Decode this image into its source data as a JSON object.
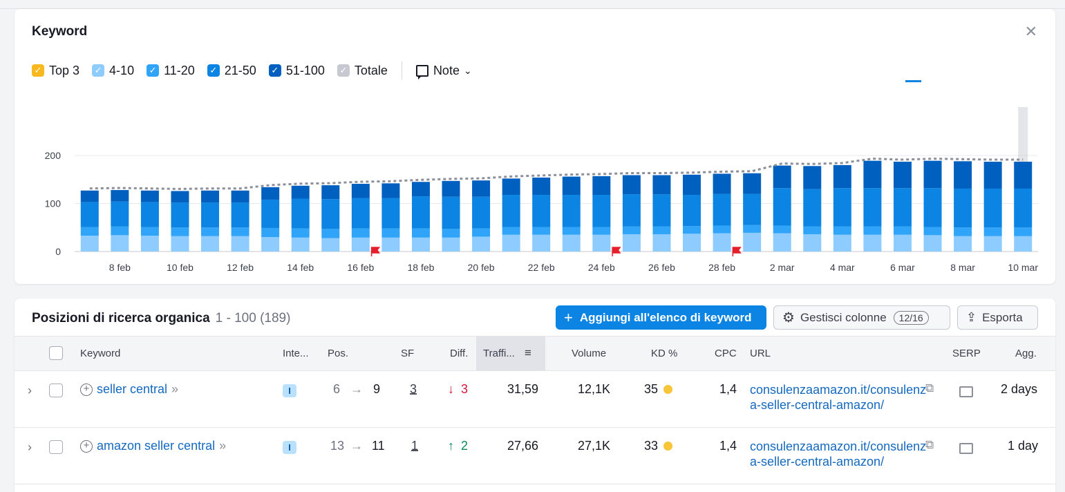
{
  "keyword_panel": {
    "title": "Keyword",
    "legend": [
      {
        "label": "Top 3",
        "color": "#f9b81f"
      },
      {
        "label": "4-10",
        "color": "#8ecbff"
      },
      {
        "label": "11-20",
        "color": "#2fa4f8"
      },
      {
        "label": "21-50",
        "color": "#0b84e3"
      },
      {
        "label": "51-100",
        "color": "#0060c0"
      },
      {
        "label": "Totale",
        "color": "#c6c9d0"
      }
    ],
    "note_label": "Note"
  },
  "chart_data": {
    "type": "bar",
    "stacked": true,
    "categories": [
      "7 feb",
      "8 feb",
      "9 feb",
      "10 feb",
      "11 feb",
      "12 feb",
      "13 feb",
      "14 feb",
      "15 feb",
      "16 feb",
      "17 feb",
      "18 feb",
      "19 feb",
      "20 feb",
      "21 feb",
      "22 feb",
      "23 feb",
      "24 feb",
      "25 feb",
      "26 feb",
      "27 feb",
      "28 feb",
      "1 mar",
      "2 mar",
      "3 mar",
      "4 mar",
      "5 mar",
      "6 mar",
      "7 mar",
      "8 mar",
      "9 mar",
      "10 mar"
    ],
    "x_tick_labels": [
      "8 feb",
      "10 feb",
      "12 feb",
      "14 feb",
      "16 feb",
      "18 feb",
      "20 feb",
      "22 feb",
      "24 feb",
      "26 feb",
      "28 feb",
      "2 mar",
      "4 mar",
      "6 mar",
      "8 mar",
      "10 mar"
    ],
    "y_ticks": [
      0,
      100,
      200
    ],
    "ylim": [
      0,
      280
    ],
    "series": [
      {
        "name": "4-10",
        "color": "#8ecbff",
        "values": [
          33,
          34,
          33,
          32,
          32,
          32,
          30,
          29,
          28,
          29,
          29,
          29,
          29,
          31,
          35,
          35,
          35,
          35,
          36,
          36,
          37,
          38,
          39,
          38,
          36,
          35,
          35,
          35,
          34,
          32,
          32,
          32
        ]
      },
      {
        "name": "11-20",
        "color": "#2fa4f8",
        "values": [
          18,
          18,
          18,
          18,
          18,
          18,
          19,
          19,
          19,
          19,
          19,
          19,
          18,
          17,
          16,
          16,
          16,
          16,
          16,
          16,
          16,
          16,
          16,
          16,
          16,
          17,
          17,
          17,
          17,
          18,
          18,
          18
        ]
      },
      {
        "name": "21-50",
        "color": "#0b84e3",
        "values": [
          52,
          52,
          52,
          52,
          52,
          52,
          59,
          62,
          62,
          63,
          63,
          67,
          67,
          66,
          67,
          67,
          67,
          67,
          67,
          67,
          65,
          66,
          65,
          78,
          78,
          80,
          80,
          80,
          81,
          81,
          81,
          81
        ]
      },
      {
        "name": "51-100",
        "color": "#0060c0",
        "values": [
          24,
          24,
          24,
          24,
          25,
          25,
          26,
          27,
          29,
          30,
          31,
          30,
          33,
          34,
          34,
          36,
          38,
          39,
          40,
          40,
          42,
          42,
          43,
          47,
          48,
          48,
          57,
          55,
          57,
          57,
          56,
          56
        ]
      }
    ],
    "total_line": {
      "name": "Totale",
      "values": [
        127,
        128,
        127,
        126,
        127,
        127,
        134,
        137,
        138,
        141,
        142,
        145,
        147,
        148,
        152,
        154,
        156,
        157,
        159,
        159,
        160,
        162,
        163,
        179,
        178,
        180,
        189,
        187,
        189,
        188,
        187,
        187
      ]
    },
    "note_flags_at": [
      "17 feb",
      "25 feb",
      "1 mar"
    ],
    "grid": true
  },
  "positions_panel": {
    "title": "Posizioni di ricerca organica",
    "range": "1 - 100 (189)",
    "add_button": "Aggiungi all'elenco di keyword",
    "manage_columns": "Gestisci colonne",
    "columns_badge": "12/16",
    "export": "Esporta"
  },
  "table": {
    "headers": {
      "keyword": "Keyword",
      "intent": "Inte...",
      "pos": "Pos.",
      "sf": "SF",
      "diff": "Diff.",
      "traffic": "Traffi...",
      "volume": "Volume",
      "kd": "KD %",
      "cpc": "CPC",
      "url": "URL",
      "serp": "SERP",
      "updated": "Agg."
    },
    "rows": [
      {
        "keyword": "seller central",
        "intent": "I",
        "pos_from": "6",
        "pos_to": "9",
        "sf": "3",
        "diff_dir": "down",
        "diff_arrow": "↓",
        "diff": "3",
        "traffic": "31,59",
        "volume": "12,1K",
        "kd": "35",
        "cpc": "1,4",
        "url": "consulenzaamazon.it/consulenza-seller-central-amazon/",
        "updated": "2 days"
      },
      {
        "keyword": "amazon seller central",
        "intent": "I",
        "pos_from": "13",
        "pos_to": "11",
        "sf": "1",
        "diff_dir": "up",
        "diff_arrow": "↑",
        "diff": "2",
        "traffic": "27,66",
        "volume": "27,1K",
        "kd": "33",
        "cpc": "1,4",
        "url": "consulenzaamazon.it/consulenza-seller-central-amazon/",
        "updated": "1 day"
      }
    ]
  }
}
